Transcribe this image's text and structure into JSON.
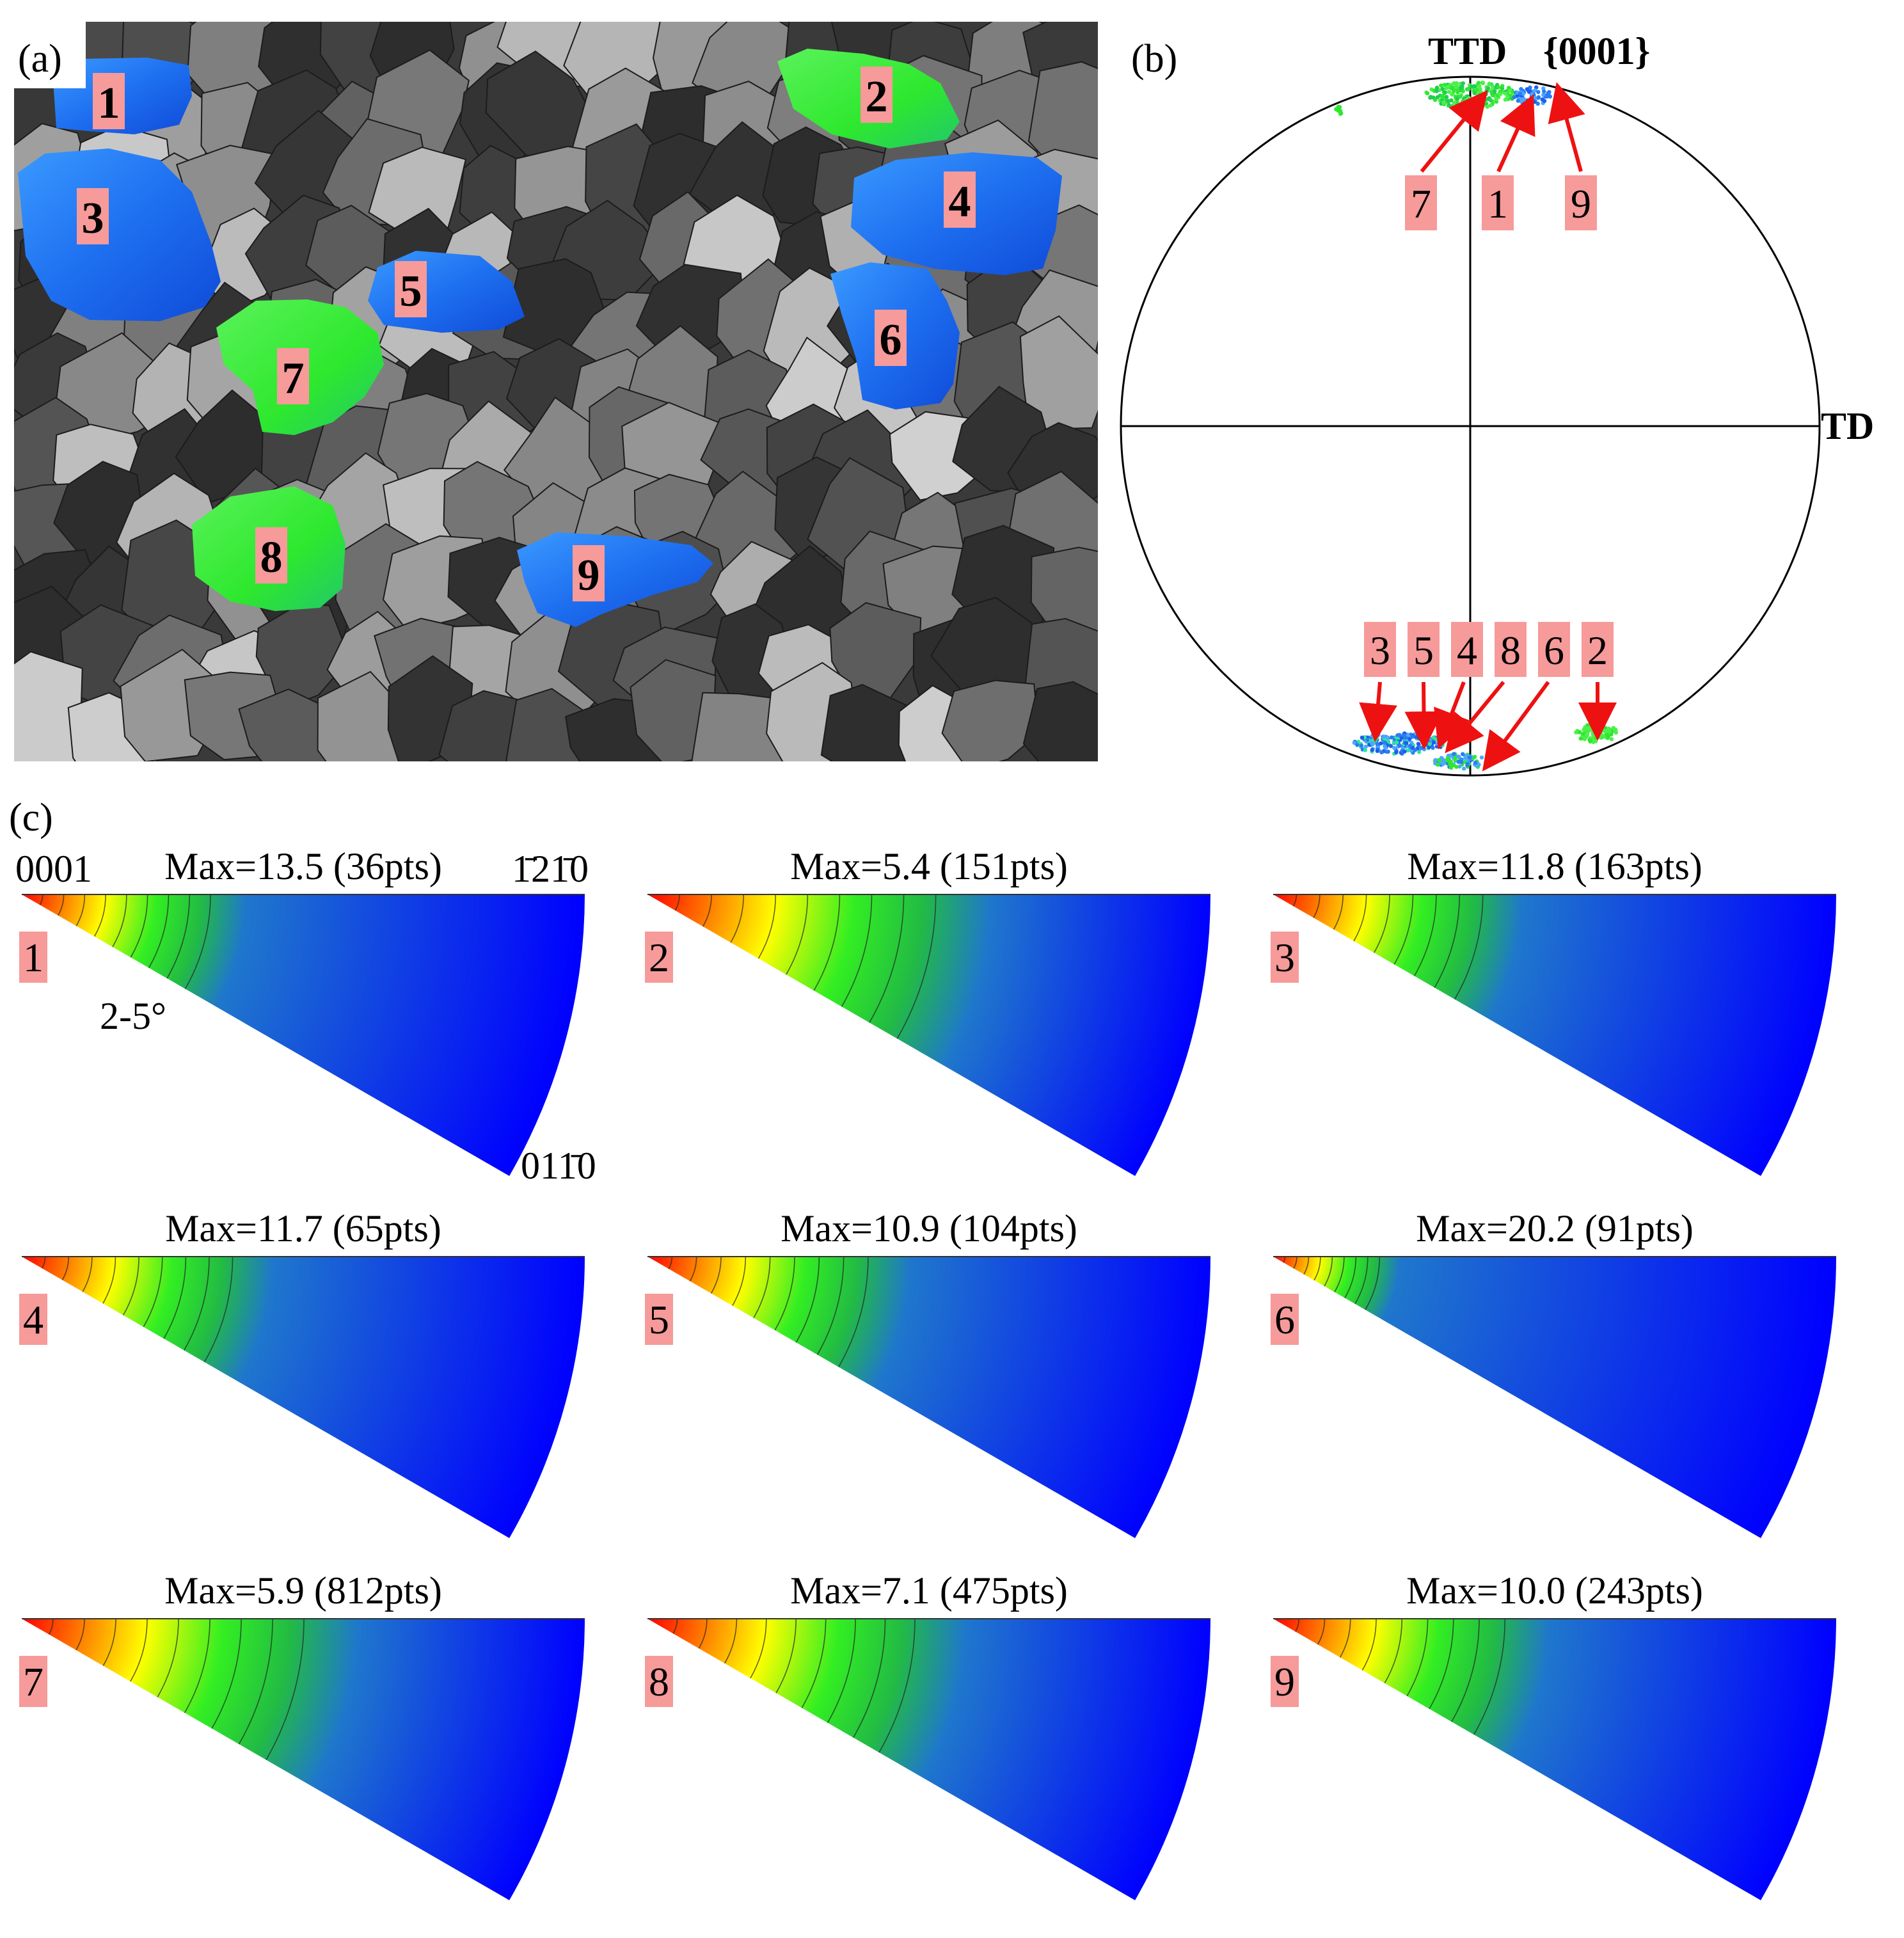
{
  "panels": {
    "a": "(a)",
    "b": "(b)",
    "c": "(c)"
  },
  "colors": {
    "label_bg": "#f79a9a",
    "grain_blue": "#1e6ff0",
    "grain_green": "#2ee82e",
    "arrow": "#ee1111"
  },
  "micrograph": {
    "grain_labels": [
      "1",
      "2",
      "3",
      "4",
      "5",
      "6",
      "7",
      "8",
      "9"
    ],
    "grain_colors": [
      "blue",
      "green",
      "blue",
      "blue",
      "blue",
      "blue",
      "green",
      "green",
      "blue"
    ]
  },
  "pole_figure": {
    "title": "{0001}",
    "top_label": "TTD",
    "right_label": "TD",
    "top_callouts": [
      "7",
      "1",
      "9"
    ],
    "bottom_callouts": [
      "3",
      "5",
      "4",
      "8",
      "6",
      "2"
    ]
  },
  "ipf": {
    "corner_labels": {
      "origin": "0001",
      "top_right": "1̄21̄0",
      "bottom_right": "011̄0",
      "angle_note": "2-5°"
    },
    "maps": [
      {
        "label": "1",
        "title": "Max=13.5 (36pts)",
        "max": 13.5,
        "pts": 36
      },
      {
        "label": "2",
        "title": "Max=5.4 (151pts)",
        "max": 5.4,
        "pts": 151
      },
      {
        "label": "3",
        "title": "Max=11.8 (163pts)",
        "max": 11.8,
        "pts": 163
      },
      {
        "label": "4",
        "title": "Max=11.7 (65pts)",
        "max": 11.7,
        "pts": 65
      },
      {
        "label": "5",
        "title": "Max=10.9 (104pts)",
        "max": 10.9,
        "pts": 104
      },
      {
        "label": "6",
        "title": "Max=20.2 (91pts)",
        "max": 20.2,
        "pts": 91
      },
      {
        "label": "7",
        "title": "Max=5.9 (812pts)",
        "max": 5.9,
        "pts": 812
      },
      {
        "label": "8",
        "title": "Max=7.1 (475pts)",
        "max": 7.1,
        "pts": 475
      },
      {
        "label": "9",
        "title": "Max=10.0 (243pts)",
        "max": 10.0,
        "pts": 243
      }
    ]
  }
}
